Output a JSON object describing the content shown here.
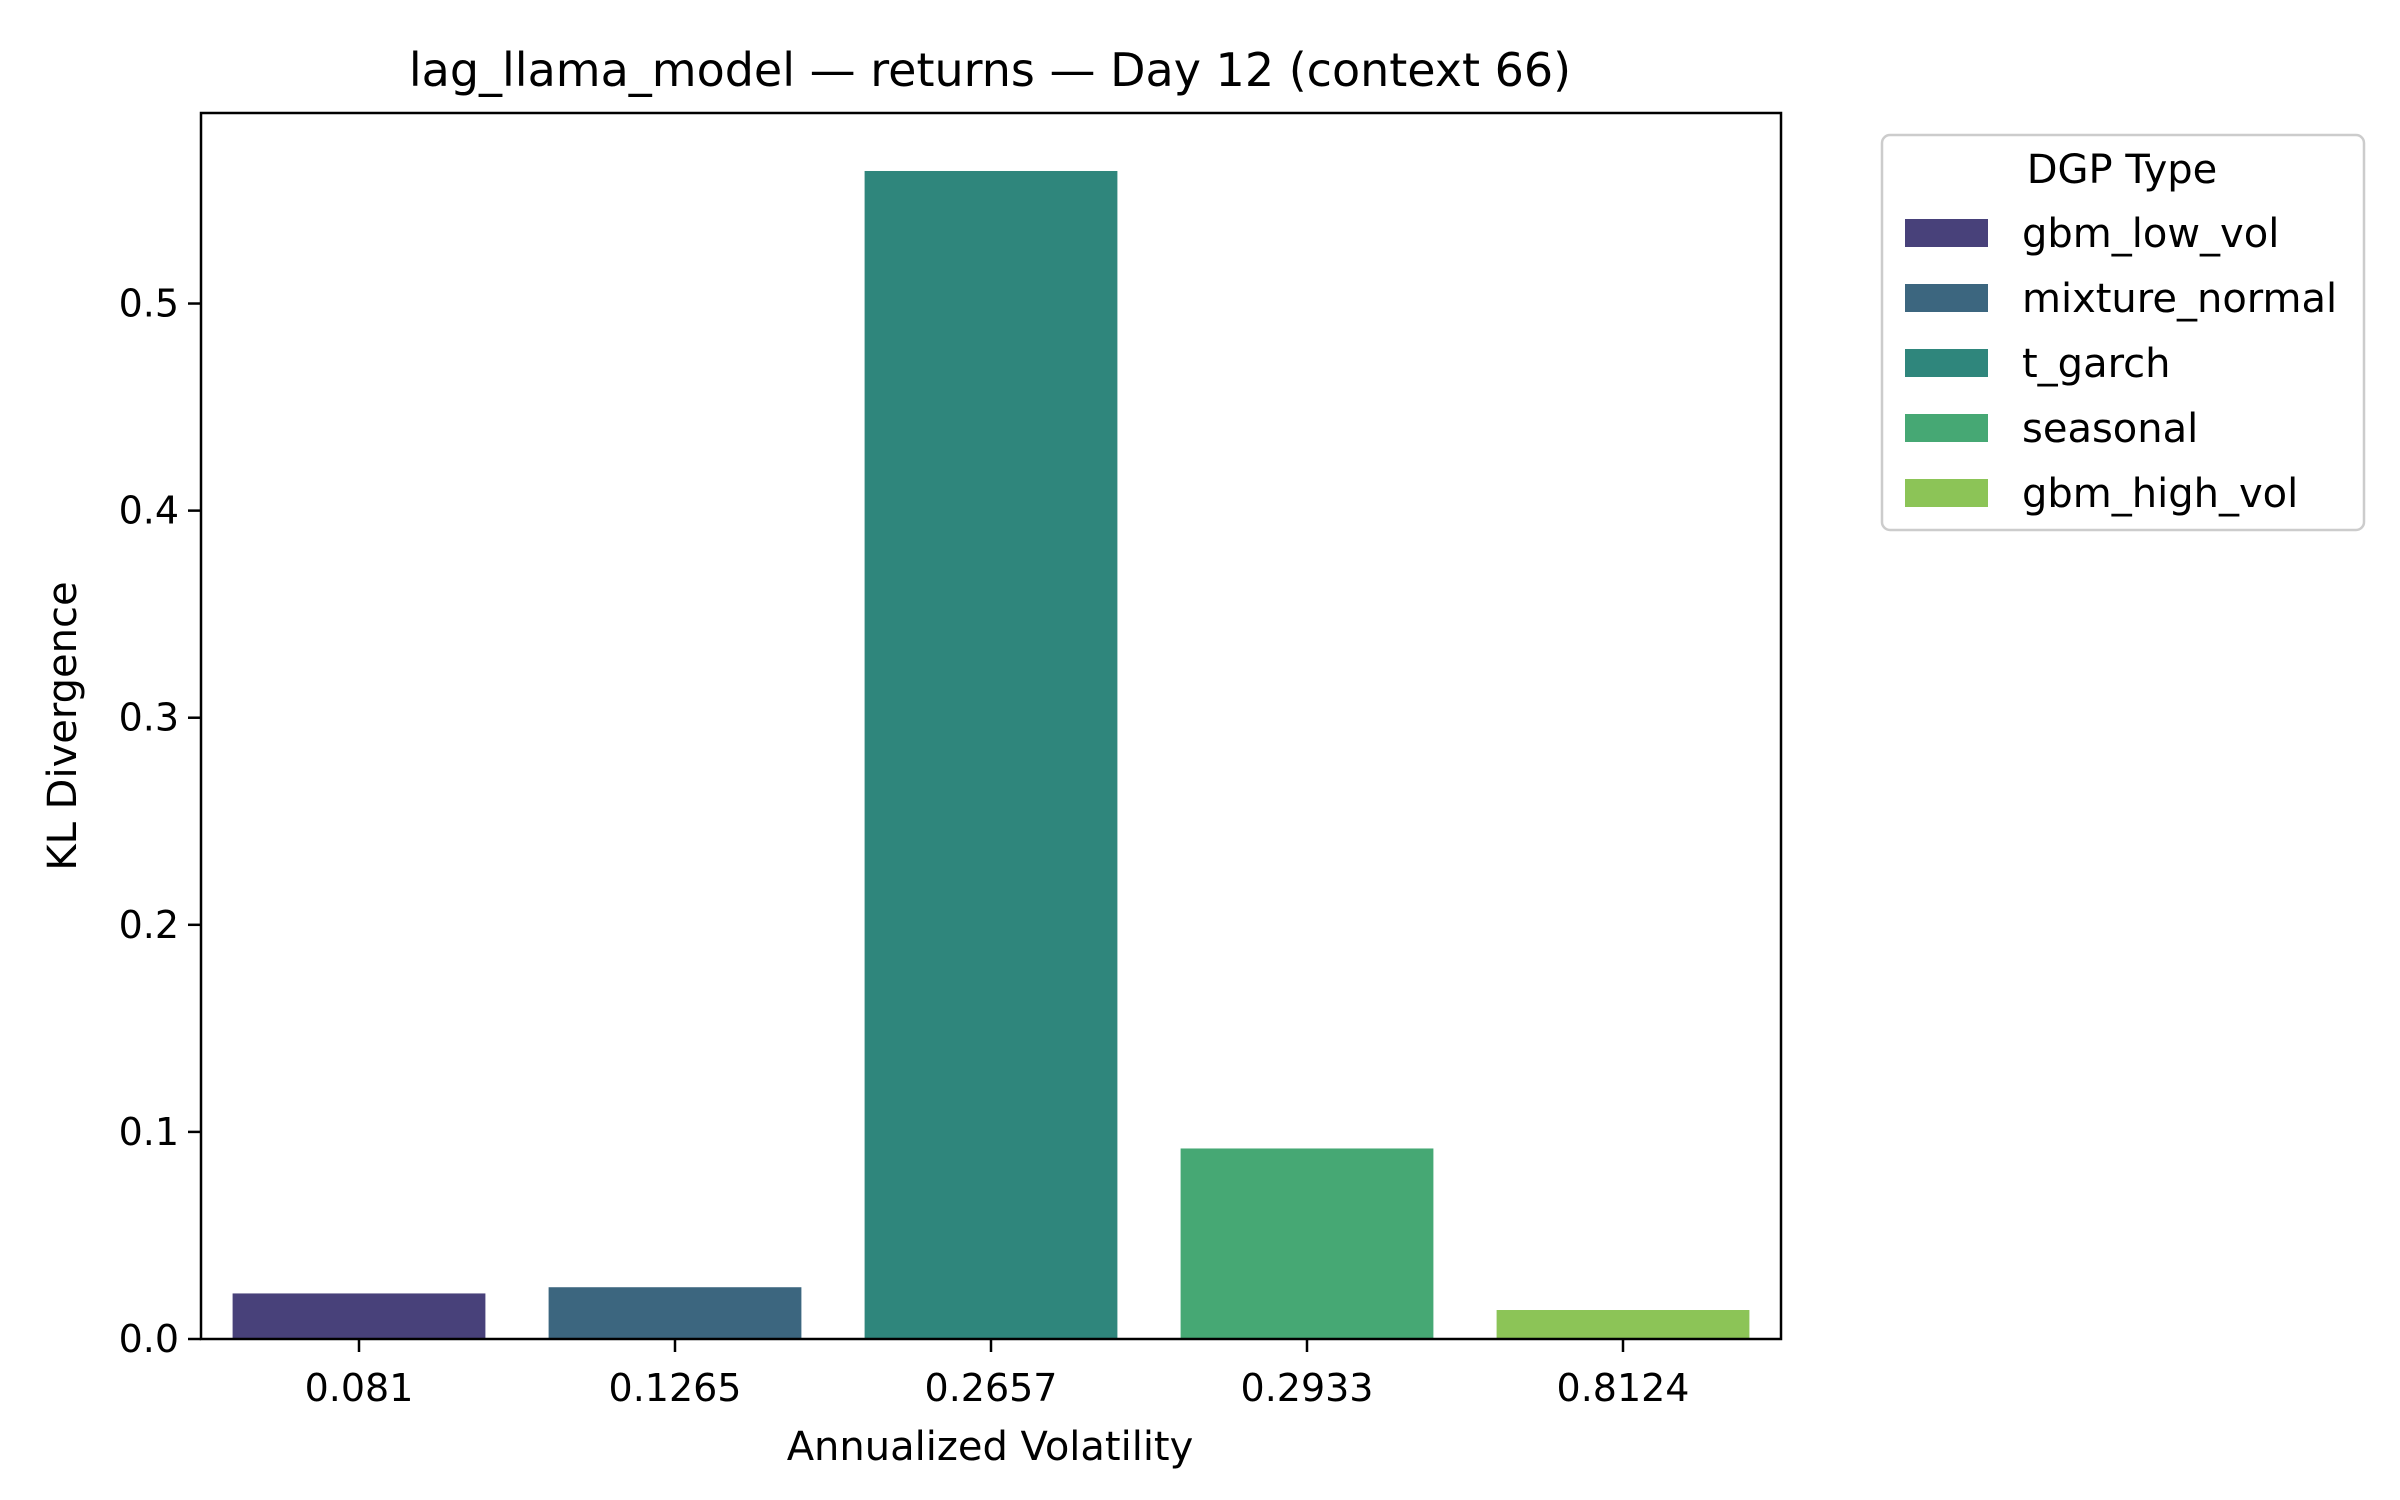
{
  "chart_data": {
    "type": "bar",
    "title": "lag_llama_model — returns — Day 12 (context 66)",
    "xlabel": "Annualized Volatility",
    "ylabel": "KL Divergence",
    "categories": [
      "0.081",
      "0.1265",
      "0.2657",
      "0.2933",
      "0.8124"
    ],
    "values": [
      0.022,
      0.025,
      0.564,
      0.092,
      0.014
    ],
    "series_names": [
      "gbm_low_vol",
      "mixture_normal",
      "t_garch",
      "seasonal",
      "gbm_high_vol"
    ],
    "colors": [
      "#48417a",
      "#3c667f",
      "#2f867c",
      "#46a874",
      "#8cc457"
    ],
    "ylim": [
      0,
      0.592
    ],
    "yticks": [
      0.0,
      0.1,
      0.2,
      0.3,
      0.4,
      0.5
    ],
    "ytick_labels": [
      "0.0",
      "0.1",
      "0.2",
      "0.3",
      "0.4",
      "0.5"
    ],
    "grid": false,
    "legend": {
      "title": "DGP Type",
      "placement": "outside-right",
      "entries": [
        "gbm_low_vol",
        "mixture_normal",
        "t_garch",
        "seasonal",
        "gbm_high_vol"
      ]
    }
  }
}
